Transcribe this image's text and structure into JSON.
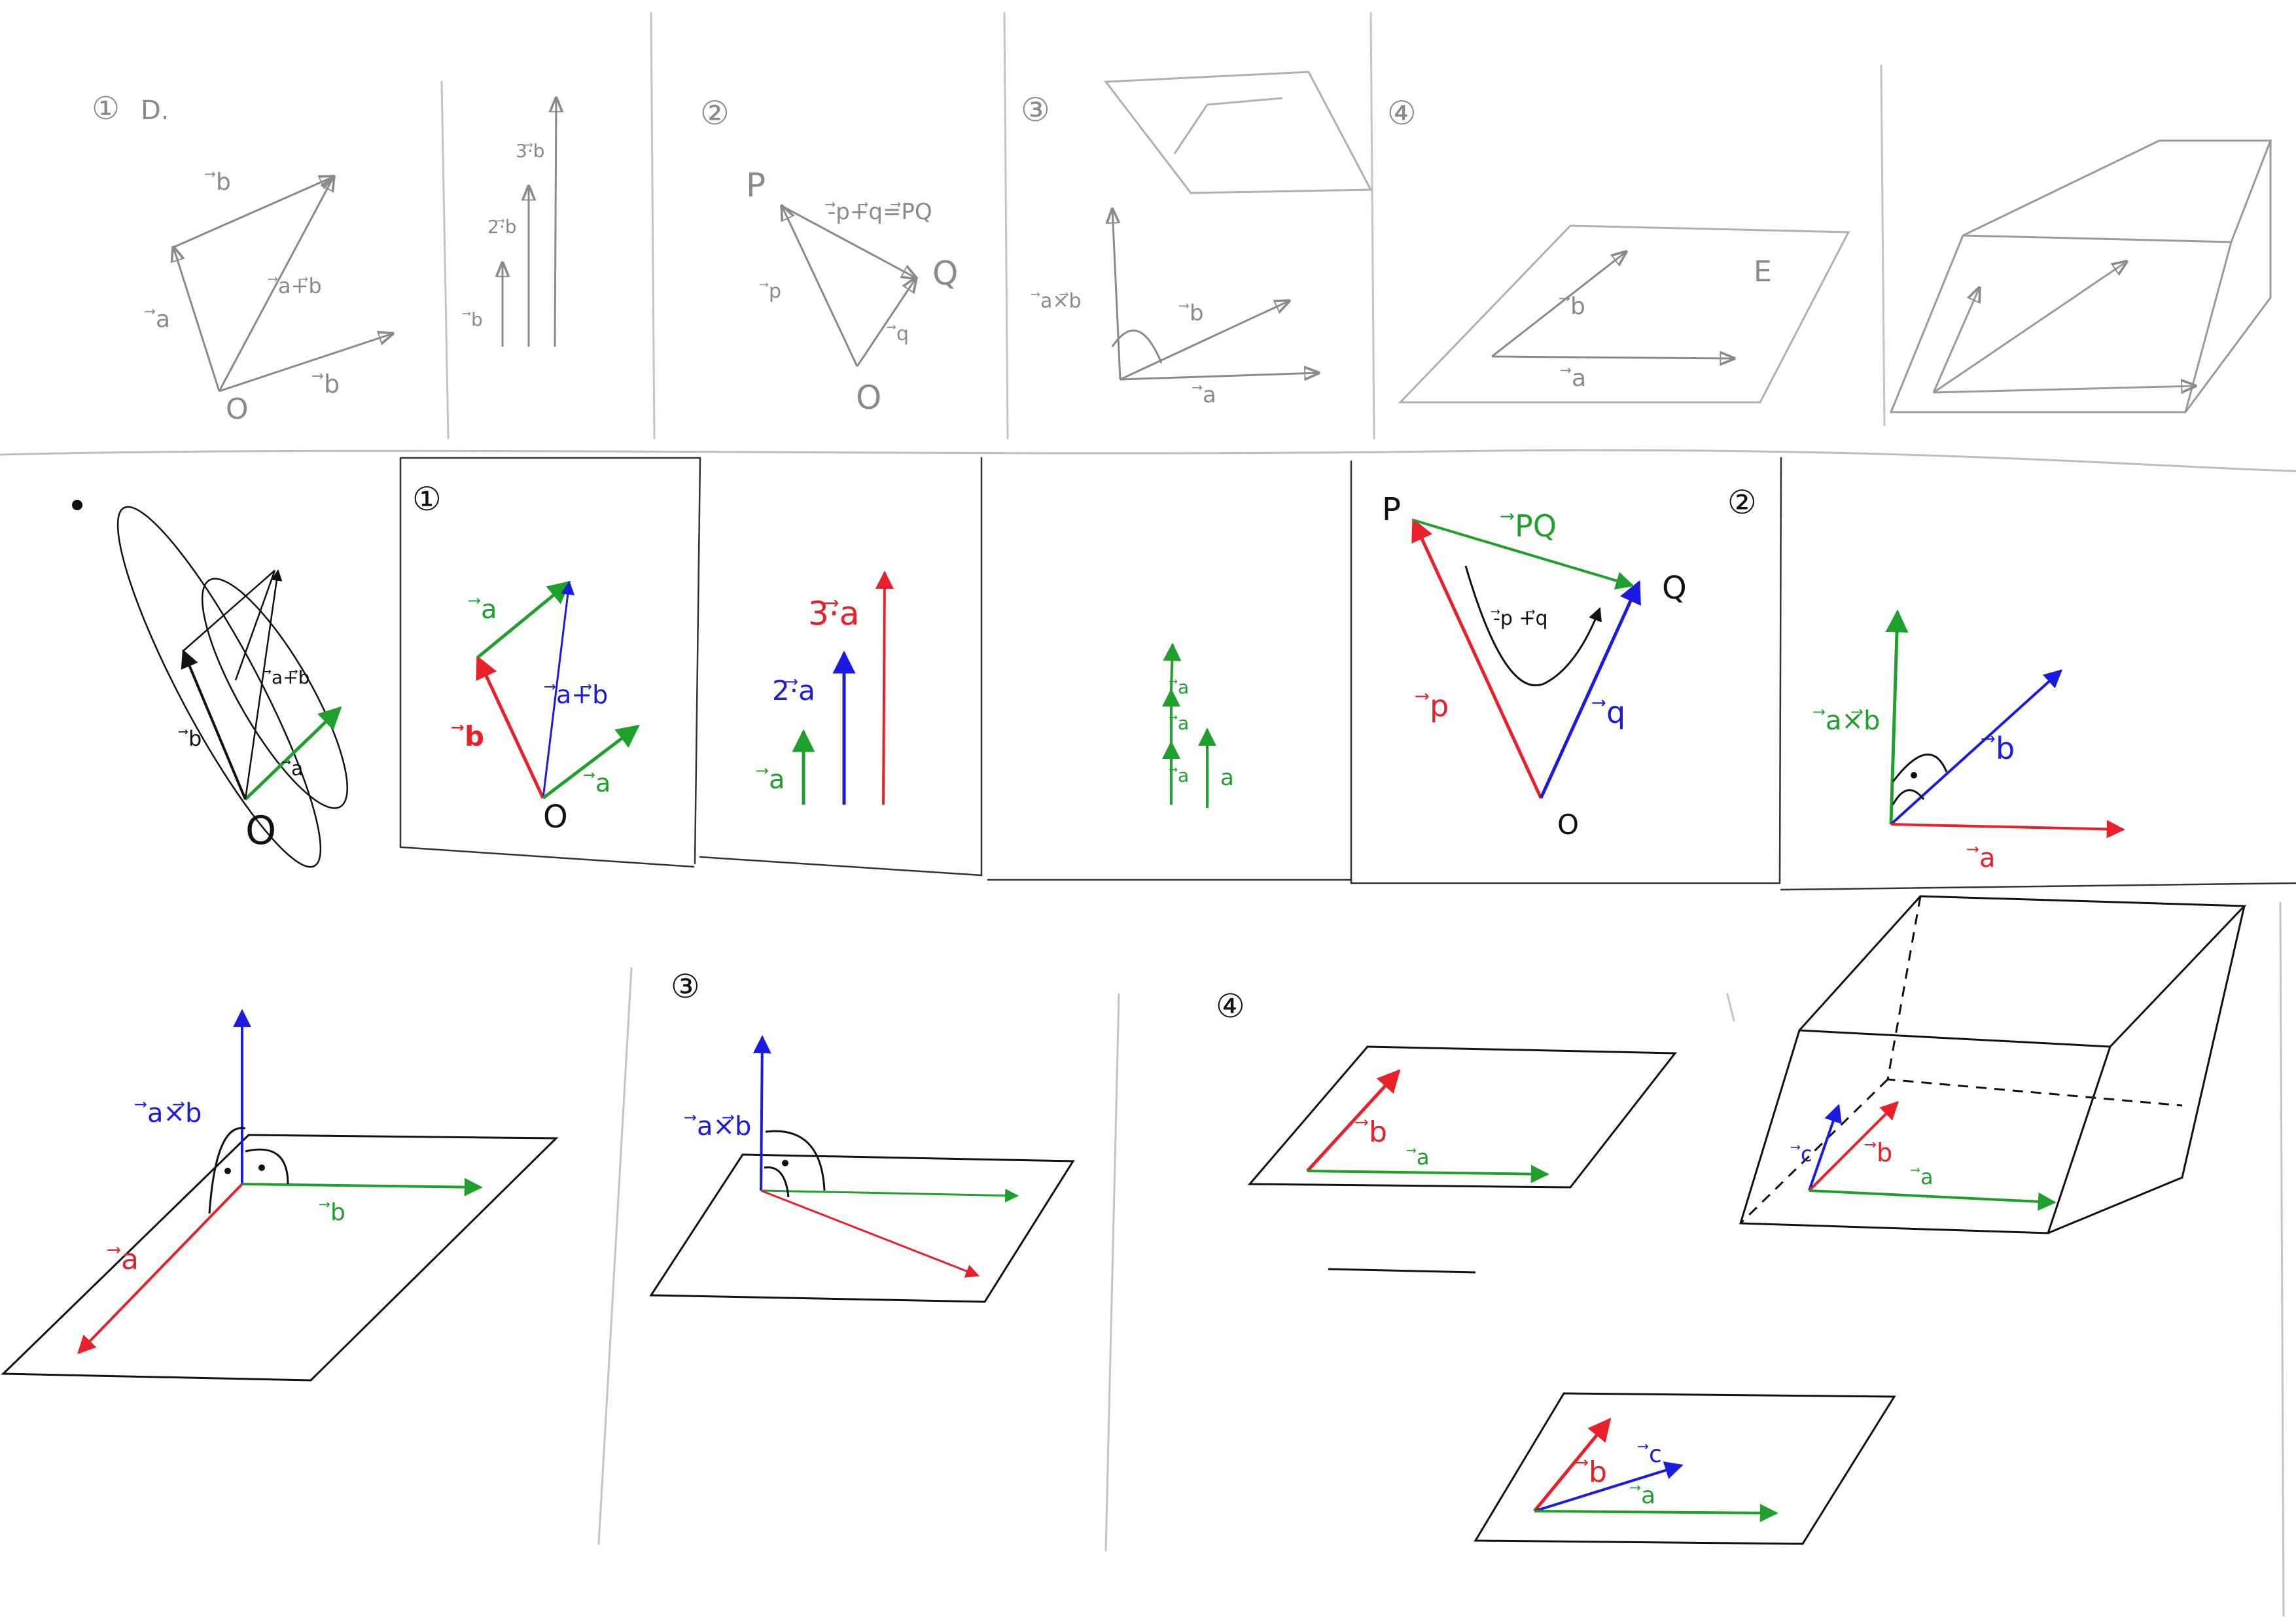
{
  "colors": {
    "pencil": "#a8a8a8",
    "ink": "#111111",
    "red": "#e8202a",
    "green": "#1fa02c",
    "blue": "#1a1ae0"
  },
  "pencil": {
    "p1": {
      "num": "①",
      "o": "O",
      "a": "⃗a",
      "b": "⃗b",
      "ab": "⃗a+⃗b",
      "b2": "⃗b"
    },
    "p2": {
      "b": "⃗b",
      "b2": "2·⃗b",
      "b3": "3·⃗b"
    },
    "p3": {
      "num": "②",
      "p": "P",
      "q": "Q",
      "o": "O",
      "pq": "-⃗p+⃗q=⃗PQ",
      "vp": "⃗p",
      "vq": "⃗q"
    },
    "p4": {
      "num": "③",
      "axb": "⃗a×⃗b",
      "b": "⃗b",
      "a": "⃗a"
    },
    "p5": {
      "num": "④",
      "e": "E",
      "b": "⃗b",
      "a": "⃗a"
    }
  },
  "row2": {
    "sketch": {
      "ab": "⃗a+⃗b",
      "b": "⃗b",
      "a": "⃗a",
      "o": "O"
    },
    "sum": {
      "num": "①",
      "a": "⃗a",
      "b": "⃗b",
      "ab": "⃗a+⃗b",
      "a2": "⃗a",
      "o": "O"
    },
    "mult": {
      "a3": "3·⃗a",
      "a2": "2·⃗a",
      "a": "⃗a"
    },
    "stack": {
      "a1": "⃗a",
      "a2": "⃗a",
      "a3": "⃗a",
      "a": "a"
    },
    "pq": {
      "num": "②",
      "p": "P",
      "q": "Q",
      "o": "O",
      "pq": "⃗PQ",
      "vp": "⃗p",
      "vq": "⃗q",
      "path": "-⃗p +⃗q"
    },
    "cross": {
      "axb": "⃗a×⃗b",
      "b": "⃗b",
      "a": "⃗a"
    }
  },
  "row3": {
    "c1": {
      "axb": "⃗a×⃗b",
      "b": "⃗b",
      "a": "⃗a"
    },
    "c2": {
      "num": "③",
      "axb": "⃗a×⃗b"
    },
    "c3": {
      "num": "④",
      "b": "⃗b",
      "a": "⃗a"
    },
    "c4": {
      "c": "⃗c",
      "b": "⃗b",
      "a": "⃗a"
    },
    "c5": {
      "b": "⃗b",
      "c": "⃗c",
      "a": "⃗a"
    }
  }
}
